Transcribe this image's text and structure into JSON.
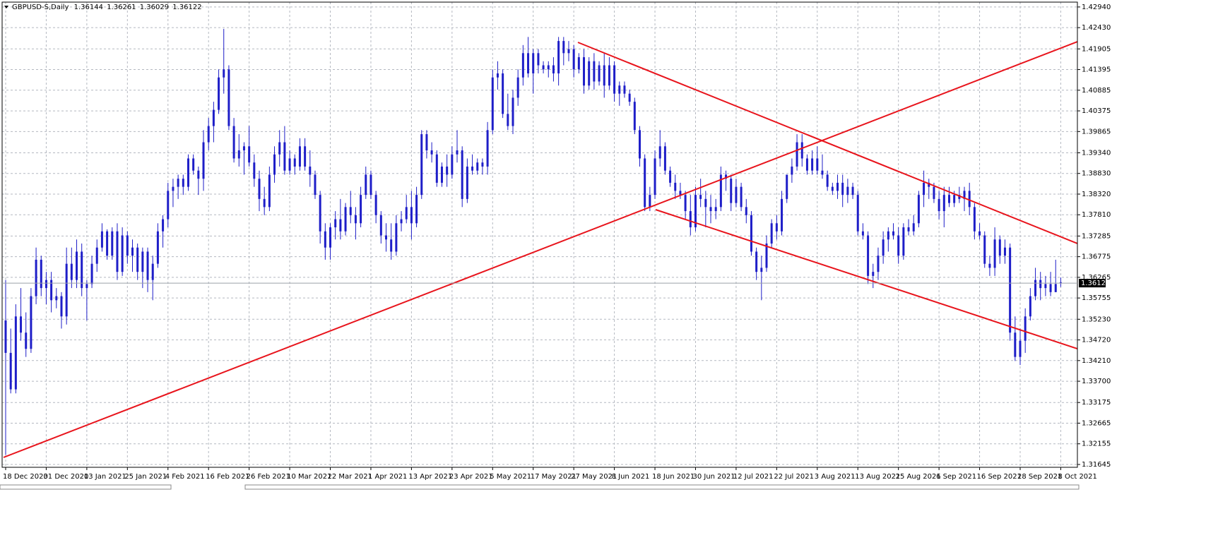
{
  "chart_data": {
    "type": "candlestick",
    "symbol": "GBPUSD-S,Daily",
    "color": "#1e1ec8",
    "grid": true,
    "ylim": [
      1.3161,
      1.4306
    ],
    "yticks": [
      {
        "value": 1.4294,
        "label": "1.42940"
      },
      {
        "value": 1.4243,
        "label": "1.42430"
      },
      1.41905,
      1.41395,
      1.40885,
      1.40375,
      1.39865,
      {
        "value": 1.3934,
        "label": "1.39340"
      },
      {
        "value": 1.3883,
        "label": "1.38830"
      },
      {
        "value": 1.3832,
        "label": "1.38320"
      },
      {
        "value": 1.3781,
        "label": "1.37810"
      },
      1.37285,
      1.36775,
      1.36265,
      1.35755,
      {
        "value": 1.3523,
        "label": "1.35230"
      },
      {
        "value": 1.3472,
        "label": "1.34720"
      },
      {
        "value": 1.3421,
        "label": "1.34210"
      },
      {
        "value": 1.337,
        "label": "1.33700"
      },
      1.33175,
      1.32665,
      1.32155,
      1.31645
    ],
    "categories": [
      "18 Dec 2020",
      null,
      null,
      null,
      null,
      null,
      null,
      null,
      "31 Dec 2020",
      null,
      null,
      null,
      null,
      null,
      null,
      null,
      "13 Jan 2021",
      null,
      null,
      null,
      null,
      null,
      null,
      null,
      "25 Jan 2021",
      null,
      null,
      null,
      null,
      null,
      null,
      null,
      "4 Feb 2021",
      null,
      null,
      null,
      null,
      null,
      null,
      null,
      "16 Feb 2021",
      null,
      null,
      null,
      null,
      null,
      null,
      null,
      "26 Feb 2021",
      null,
      null,
      null,
      null,
      null,
      null,
      null,
      "10 Mar 2021",
      null,
      null,
      null,
      null,
      null,
      null,
      null,
      "22 Mar 2021",
      null,
      null,
      null,
      null,
      null,
      null,
      null,
      "1 Apr 2021",
      null,
      null,
      null,
      null,
      null,
      null,
      null,
      "13 Apr 2021",
      null,
      null,
      null,
      null,
      null,
      null,
      null,
      "23 Apr 2021",
      null,
      null,
      null,
      null,
      null,
      null,
      null,
      "5 May 2021",
      null,
      null,
      null,
      null,
      null,
      null,
      null,
      "17 May 2021",
      null,
      null,
      null,
      null,
      null,
      null,
      null,
      "27 May 2021",
      null,
      null,
      null,
      null,
      null,
      null,
      null,
      "8 Jun 2021",
      null,
      null,
      null,
      null,
      null,
      null,
      null,
      "18 Jun 2021",
      null,
      null,
      null,
      null,
      null,
      null,
      null,
      "30 Jun 2021",
      null,
      null,
      null,
      null,
      null,
      null,
      null,
      "12 Jul 2021",
      null,
      null,
      null,
      null,
      null,
      null,
      null,
      "22 Jul 2021",
      null,
      null,
      null,
      null,
      null,
      null,
      null,
      "3 Aug 2021",
      null,
      null,
      null,
      null,
      null,
      null,
      null,
      "13 Aug 2021",
      null,
      null,
      null,
      null,
      null,
      null,
      null,
      "25 Aug 2021",
      null,
      null,
      null,
      null,
      null,
      null,
      null,
      "6 Sep 2021",
      null,
      null,
      null,
      null,
      null,
      null,
      null,
      "16 Sep 2021",
      null,
      null,
      null,
      null,
      null,
      null,
      null,
      "28 Sep 2021",
      null,
      null,
      null,
      null,
      null,
      null,
      null,
      "8 Oct 2021"
    ],
    "open": [
      1.352,
      1.344,
      1.335,
      1.353,
      1.349,
      1.345,
      1.358,
      1.367,
      1.36,
      1.362,
      1.357,
      1.358,
      1.353,
      1.366,
      1.362,
      1.369,
      1.36,
      1.361,
      1.366,
      1.37,
      1.374,
      1.368,
      1.374,
      1.364,
      1.373,
      1.368,
      1.37,
      1.364,
      1.369,
      1.362,
      1.366,
      1.374,
      1.377,
      1.384,
      1.385,
      1.387,
      1.385,
      1.392,
      1.389,
      1.387,
      1.396,
      1.4,
      1.404,
      1.412,
      1.414,
      1.4,
      1.392,
      1.394,
      1.395,
      1.391,
      1.387,
      1.382,
      1.38,
      1.388,
      1.393,
      1.396,
      1.389,
      1.392,
      1.39,
      1.395,
      1.39,
      1.388,
      1.383,
      1.374,
      1.37,
      1.375,
      1.377,
      1.374,
      1.38,
      1.378,
      1.376,
      1.383,
      1.388,
      1.383,
      1.378,
      1.373,
      1.372,
      1.369,
      1.376,
      1.377,
      1.38,
      1.376,
      1.383,
      1.398,
      1.394,
      1.393,
      1.386,
      1.39,
      1.388,
      1.393,
      1.394,
      1.382,
      1.39,
      1.389,
      1.391,
      1.39,
      1.399,
      1.412,
      1.413,
      1.403,
      1.4,
      1.407,
      1.412,
      1.418,
      1.413,
      1.418,
      1.415,
      1.414,
      1.415,
      1.413,
      1.421,
      1.418,
      1.419,
      1.414,
      1.417,
      1.41,
      1.416,
      1.411,
      1.415,
      1.41,
      1.415,
      1.408,
      1.41,
      1.408,
      1.406,
      1.399,
      1.392,
      1.38,
      1.383,
      1.392,
      1.395,
      1.389,
      1.386,
      1.384,
      1.383,
      1.379,
      1.375,
      1.383,
      1.382,
      1.38,
      1.379,
      1.38,
      1.388,
      1.387,
      1.381,
      1.385,
      1.38,
      1.378,
      1.369,
      1.364,
      1.365,
      1.371,
      1.376,
      1.374,
      1.382,
      1.388,
      1.39,
      1.396,
      1.392,
      1.389,
      1.392,
      1.389,
      1.388,
      1.385,
      1.384,
      1.386,
      1.383,
      1.385,
      1.383,
      1.374,
      1.373,
      1.363,
      1.364,
      1.368,
      1.372,
      1.374,
      1.373,
      1.368,
      1.375,
      1.374,
      1.376,
      1.383,
      1.386,
      1.385,
      1.382,
      1.379,
      1.383,
      1.381,
      1.383,
      1.382,
      1.384,
      1.38,
      1.374,
      1.373,
      1.366,
      1.365,
      1.372,
      1.368,
      1.37,
      1.349,
      1.343,
      1.347,
      1.353,
      1.358,
      1.362,
      1.36,
      1.361,
      1.359,
      1.36144
    ],
    "high": [
      1.362,
      1.35,
      1.356,
      1.36,
      1.354,
      1.36,
      1.37,
      1.368,
      1.364,
      1.364,
      1.36,
      1.359,
      1.37,
      1.37,
      1.372,
      1.371,
      1.362,
      1.368,
      1.372,
      1.376,
      1.3745,
      1.375,
      1.376,
      1.375,
      1.374,
      1.372,
      1.371,
      1.37,
      1.37,
      1.368,
      1.376,
      1.378,
      1.386,
      1.387,
      1.388,
      1.388,
      1.393,
      1.393,
      1.39,
      1.399,
      1.402,
      1.406,
      1.414,
      1.424,
      1.415,
      1.402,
      1.398,
      1.396,
      1.4,
      1.393,
      1.389,
      1.385,
      1.39,
      1.395,
      1.399,
      1.4,
      1.394,
      1.393,
      1.397,
      1.397,
      1.394,
      1.389,
      1.384,
      1.376,
      1.376,
      1.379,
      1.382,
      1.381,
      1.384,
      1.38,
      1.385,
      1.39,
      1.389,
      1.384,
      1.379,
      1.376,
      1.376,
      1.378,
      1.379,
      1.383,
      1.384,
      1.385,
      1.399,
      1.399,
      1.396,
      1.394,
      1.391,
      1.393,
      1.395,
      1.399,
      1.395,
      1.392,
      1.393,
      1.392,
      1.392,
      1.401,
      1.414,
      1.416,
      1.414,
      1.408,
      1.409,
      1.414,
      1.42,
      1.422,
      1.419,
      1.419,
      1.416,
      1.416,
      1.417,
      1.422,
      1.422,
      1.421,
      1.42,
      1.418,
      1.419,
      1.417,
      1.418,
      1.416,
      1.418,
      1.417,
      1.416,
      1.411,
      1.411,
      1.409,
      1.407,
      1.4,
      1.393,
      1.385,
      1.394,
      1.399,
      1.396,
      1.39,
      1.388,
      1.386,
      1.384,
      1.383,
      1.385,
      1.387,
      1.384,
      1.383,
      1.382,
      1.39,
      1.389,
      1.388,
      1.387,
      1.386,
      1.382,
      1.379,
      1.37,
      1.368,
      1.373,
      1.377,
      1.378,
      1.384,
      1.388,
      1.392,
      1.398,
      1.398,
      1.393,
      1.394,
      1.395,
      1.393,
      1.389,
      1.386,
      1.388,
      1.388,
      1.387,
      1.386,
      1.384,
      1.376,
      1.374,
      1.366,
      1.37,
      1.374,
      1.375,
      1.376,
      1.375,
      1.376,
      1.377,
      1.378,
      1.384,
      1.389,
      1.387,
      1.386,
      1.384,
      1.385,
      1.385,
      1.384,
      1.385,
      1.385,
      1.386,
      1.381,
      1.376,
      1.374,
      1.368,
      1.375,
      1.373,
      1.372,
      1.371,
      1.353,
      1.35,
      1.355,
      1.36,
      1.365,
      1.364,
      1.363,
      1.364,
      1.367,
      1.36261
    ],
    "low": [
      1.3188,
      1.334,
      1.334,
      1.347,
      1.343,
      1.344,
      1.356,
      1.358,
      1.356,
      1.354,
      1.355,
      1.35,
      1.351,
      1.36,
      1.36,
      1.358,
      1.352,
      1.36,
      1.364,
      1.369,
      1.367,
      1.367,
      1.362,
      1.363,
      1.366,
      1.364,
      1.362,
      1.36,
      1.359,
      1.357,
      1.365,
      1.37,
      1.375,
      1.38,
      1.382,
      1.383,
      1.384,
      1.388,
      1.383,
      1.384,
      1.394,
      1.396,
      1.403,
      1.408,
      1.399,
      1.391,
      1.39,
      1.388,
      1.39,
      1.385,
      1.379,
      1.378,
      1.379,
      1.386,
      1.39,
      1.388,
      1.388,
      1.388,
      1.389,
      1.389,
      1.385,
      1.382,
      1.371,
      1.367,
      1.367,
      1.372,
      1.372,
      1.373,
      1.376,
      1.372,
      1.375,
      1.382,
      1.382,
      1.376,
      1.371,
      1.369,
      1.367,
      1.368,
      1.374,
      1.376,
      1.372,
      1.375,
      1.382,
      1.392,
      1.391,
      1.385,
      1.385,
      1.385,
      1.387,
      1.391,
      1.38,
      1.381,
      1.388,
      1.388,
      1.388,
      1.388,
      1.398,
      1.409,
      1.402,
      1.399,
      1.398,
      1.405,
      1.41,
      1.412,
      1.408,
      1.413,
      1.413,
      1.412,
      1.411,
      1.41,
      1.415,
      1.416,
      1.412,
      1.413,
      1.408,
      1.409,
      1.409,
      1.41,
      1.407,
      1.409,
      1.406,
      1.405,
      1.407,
      1.405,
      1.398,
      1.39,
      1.379,
      1.379,
      1.382,
      1.39,
      1.388,
      1.385,
      1.382,
      1.382,
      1.377,
      1.373,
      1.374,
      1.38,
      1.375,
      1.376,
      1.377,
      1.379,
      1.384,
      1.379,
      1.38,
      1.379,
      1.376,
      1.368,
      1.362,
      1.357,
      1.364,
      1.37,
      1.372,
      1.373,
      1.381,
      1.386,
      1.389,
      1.39,
      1.388,
      1.388,
      1.388,
      1.387,
      1.384,
      1.383,
      1.382,
      1.38,
      1.381,
      1.382,
      1.373,
      1.372,
      1.361,
      1.36,
      1.362,
      1.366,
      1.369,
      1.372,
      1.366,
      1.367,
      1.373,
      1.373,
      1.375,
      1.38,
      1.382,
      1.381,
      1.377,
      1.375,
      1.38,
      1.38,
      1.381,
      1.379,
      1.378,
      1.372,
      1.372,
      1.365,
      1.363,
      1.363,
      1.366,
      1.366,
      1.347,
      1.342,
      1.341,
      1.344,
      1.352,
      1.357,
      1.357,
      1.358,
      1.358,
      1.359,
      1.36029
    ],
    "close": [
      1.344,
      1.335,
      1.353,
      1.349,
      1.345,
      1.358,
      1.367,
      1.36,
      1.362,
      1.357,
      1.358,
      1.353,
      1.366,
      1.362,
      1.369,
      1.36,
      1.361,
      1.366,
      1.37,
      1.374,
      1.368,
      1.374,
      1.364,
      1.373,
      1.368,
      1.37,
      1.364,
      1.369,
      1.362,
      1.366,
      1.374,
      1.377,
      1.384,
      1.385,
      1.387,
      1.385,
      1.392,
      1.389,
      1.387,
      1.396,
      1.4,
      1.404,
      1.412,
      1.414,
      1.4,
      1.392,
      1.394,
      1.395,
      1.391,
      1.387,
      1.382,
      1.38,
      1.388,
      1.393,
      1.396,
      1.389,
      1.392,
      1.39,
      1.395,
      1.39,
      1.388,
      1.383,
      1.374,
      1.37,
      1.375,
      1.377,
      1.374,
      1.38,
      1.378,
      1.376,
      1.383,
      1.388,
      1.383,
      1.378,
      1.373,
      1.372,
      1.369,
      1.376,
      1.377,
      1.38,
      1.376,
      1.383,
      1.398,
      1.394,
      1.393,
      1.386,
      1.39,
      1.388,
      1.393,
      1.394,
      1.382,
      1.39,
      1.389,
      1.391,
      1.39,
      1.399,
      1.412,
      1.413,
      1.403,
      1.4,
      1.407,
      1.412,
      1.418,
      1.413,
      1.418,
      1.415,
      1.414,
      1.415,
      1.413,
      1.421,
      1.418,
      1.419,
      1.414,
      1.417,
      1.41,
      1.416,
      1.411,
      1.415,
      1.41,
      1.415,
      1.408,
      1.41,
      1.408,
      1.406,
      1.399,
      1.392,
      1.38,
      1.383,
      1.392,
      1.395,
      1.389,
      1.386,
      1.384,
      1.383,
      1.379,
      1.375,
      1.383,
      1.382,
      1.38,
      1.379,
      1.38,
      1.388,
      1.387,
      1.381,
      1.385,
      1.38,
      1.378,
      1.369,
      1.364,
      1.365,
      1.371,
      1.376,
      1.374,
      1.382,
      1.388,
      1.39,
      1.396,
      1.392,
      1.389,
      1.392,
      1.389,
      1.388,
      1.385,
      1.384,
      1.386,
      1.383,
      1.385,
      1.383,
      1.374,
      1.373,
      1.363,
      1.364,
      1.368,
      1.372,
      1.374,
      1.373,
      1.368,
      1.375,
      1.374,
      1.376,
      1.383,
      1.386,
      1.385,
      1.382,
      1.379,
      1.383,
      1.381,
      1.383,
      1.382,
      1.384,
      1.38,
      1.374,
      1.373,
      1.366,
      1.365,
      1.372,
      1.368,
      1.37,
      1.349,
      1.343,
      1.347,
      1.353,
      1.358,
      1.362,
      1.36,
      1.361,
      1.359,
      1.361,
      1.36122
    ]
  }
}
